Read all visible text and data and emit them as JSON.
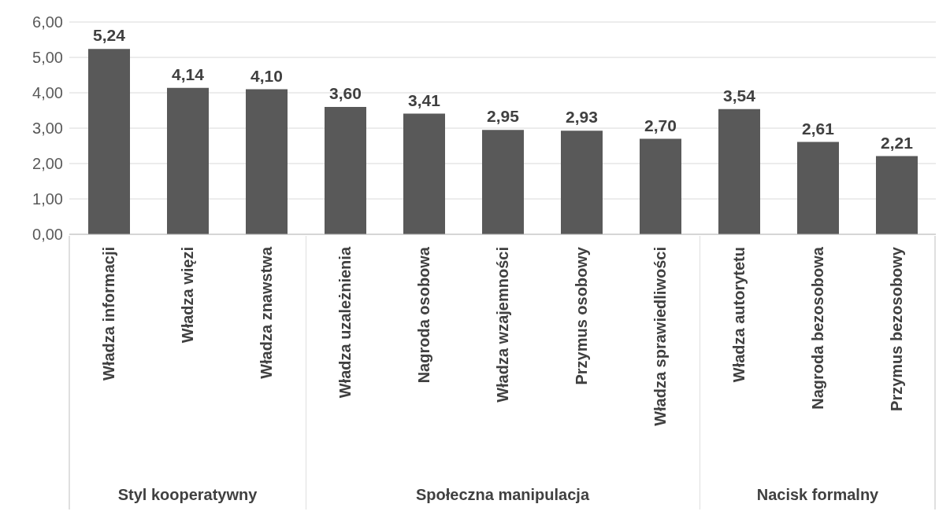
{
  "chart_data": [
    {
      "type": "bar",
      "categories": [
        "Władza informacji",
        "Władza więzi",
        "Władza znawstwa"
      ],
      "values": [
        5.24,
        4.14,
        4.1
      ],
      "color": "#595959",
      "ylim": [
        0,
        6
      ],
      "yticks": [
        {
          "value": 0,
          "label": "0,00"
        },
        {
          "value": 1,
          "label": "1,00"
        },
        {
          "value": 2,
          "label": "2,00"
        },
        {
          "value": 3,
          "label": "3,00"
        },
        {
          "value": 4,
          "label": "4,00"
        },
        {
          "value": 5,
          "label": "5,00"
        },
        {
          "value": 6,
          "label": "6,00"
        }
      ],
      "grid": "y",
      "value_labels": [
        "5,24",
        "4,14",
        "4,10"
      ],
      "xlabel": "Styl kooperatywny"
    },
    {
      "type": "bar",
      "categories": [
        "Władza uzależnienia",
        "Nagroda osobowa",
        "Władza wzajemności",
        "Przymus osobowy",
        "Władza sprawiedliwości"
      ],
      "values": [
        3.6,
        3.41,
        2.95,
        2.93,
        2.7
      ],
      "color": "#595959",
      "ylim": [
        0,
        6
      ],
      "yticks": [
        0,
        1,
        2,
        3,
        4,
        5,
        6
      ],
      "grid": "y",
      "tick_labels": "x",
      "value_labels": [
        "3,60",
        "3,41",
        "2,95",
        "2,93",
        "2,70"
      ],
      "xlabel": "Społeczna manipulacja"
    },
    {
      "type": "bar",
      "categories": [
        "Władza autorytetu",
        "Nagroda bezosobowa",
        "Przymus bezosobowy"
      ],
      "values": [
        3.54,
        2.61,
        2.21
      ],
      "color": "#595959",
      "ylim": [
        0,
        6
      ],
      "yticks": [
        0,
        1,
        2,
        3,
        4,
        5,
        6
      ],
      "grid": "y",
      "tick_labels": "x",
      "value_labels": [
        "3,54",
        "2,61",
        "2,21"
      ],
      "xlabel": "Nacisk formalny"
    }
  ]
}
